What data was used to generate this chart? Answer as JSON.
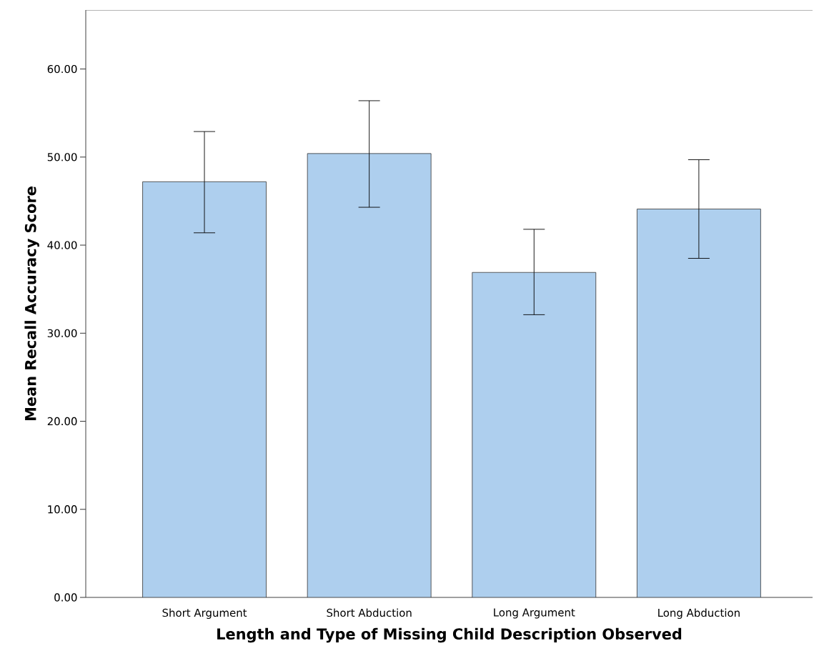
{
  "chart_data": {
    "type": "bar",
    "xlabel": "Length and Type of Missing Child Description Observed",
    "ylabel": "Mean Recall Accuracy Score",
    "categories": [
      "Short Argument",
      "Short Abduction",
      "Long Argument",
      "Long Abduction"
    ],
    "values": [
      47.2,
      50.4,
      36.9,
      44.1
    ],
    "errors": [
      [
        41.4,
        52.9
      ],
      [
        44.3,
        56.4
      ],
      [
        32.1,
        41.8
      ],
      [
        38.5,
        49.7
      ]
    ],
    "color": "#aecfee",
    "ylim": [
      0,
      66.7
    ],
    "yticks": [
      {
        "value": 0,
        "label": "0.00"
      },
      {
        "value": 10,
        "label": "10.00"
      },
      {
        "value": 20,
        "label": "20.00"
      },
      {
        "value": 30,
        "label": "30.00"
      },
      {
        "value": 40,
        "label": "40.00"
      },
      {
        "value": 50,
        "label": "50.00"
      },
      {
        "value": 60,
        "label": "60.00"
      }
    ],
    "grid": false
  }
}
